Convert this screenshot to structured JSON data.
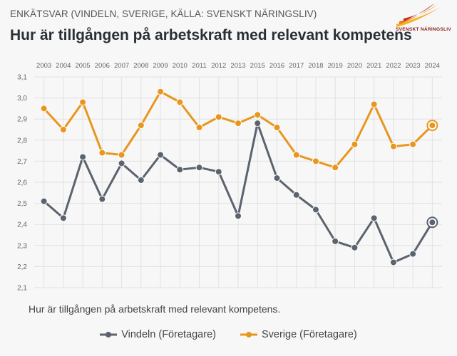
{
  "header": {
    "supertitle": "ENKÄTSVAR (VINDELN, SVERIGE, KÄLLA: SVENSKT NÄRINGSLIV)",
    "title": "Hur är tillgången på arbetskraft med relevant kompetens",
    "logo_text": "SVENSKT NÄRINGSLIV"
  },
  "caption": "Hur är tillgången på arbetskraft med relevant kompetens.",
  "colors": {
    "vindeln": "#5b636e",
    "sverige": "#e8961e",
    "grid": "#e2e2e2",
    "axis_text": "#666666"
  },
  "chart_data": {
    "type": "line",
    "title": "Hur är tillgången på arbetskraft med relevant kompetens",
    "x": [
      "2003",
      "2004",
      "2005",
      "2006",
      "2007",
      "2008",
      "2009",
      "2010",
      "2011",
      "2012",
      "2013",
      "2015",
      "2016",
      "2017",
      "2018",
      "2019",
      "2020",
      "2021",
      "2022",
      "2023",
      "2024"
    ],
    "ylim": [
      2.1,
      3.1
    ],
    "yticks": [
      "2,1",
      "2,2",
      "2,3",
      "2,4",
      "2,5",
      "2,6",
      "2,7",
      "2,8",
      "2,9",
      "3,0",
      "3,1"
    ],
    "grid": true,
    "legend_position": "bottom",
    "series": [
      {
        "name": "Vindeln (Företagare)",
        "values": [
          2.51,
          2.43,
          2.72,
          2.52,
          2.69,
          2.61,
          2.73,
          2.66,
          2.67,
          2.65,
          2.44,
          2.88,
          2.62,
          2.54,
          2.47,
          2.32,
          2.29,
          2.43,
          2.22,
          2.26,
          2.41
        ]
      },
      {
        "name": "Sverige (Företagare)",
        "values": [
          2.95,
          2.85,
          2.98,
          2.74,
          2.73,
          2.87,
          3.03,
          2.98,
          2.86,
          2.91,
          2.88,
          2.92,
          2.86,
          2.73,
          2.7,
          2.67,
          2.78,
          2.97,
          2.77,
          2.78,
          2.87
        ]
      }
    ]
  }
}
